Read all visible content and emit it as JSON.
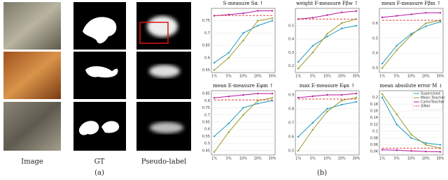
{
  "panel_a": {
    "columns": [
      "Image",
      "GT",
      "Pseudo-label"
    ],
    "label": "(a)"
  },
  "panel_b": {
    "label": "(b)"
  },
  "chart_data": [
    {
      "type": "line",
      "title": "S-measure Sα ↑",
      "categories": [
        "1%",
        "5%",
        "10%",
        "20%",
        "30%"
      ],
      "ylim": [
        0.54,
        0.8
      ],
      "yticks": [
        0.55,
        0.6,
        0.65,
        0.7,
        0.75
      ],
      "series": [
        {
          "color": "#1f9bbf",
          "values": [
            0.58,
            0.62,
            0.7,
            0.73,
            0.75
          ]
        },
        {
          "color": "#9a9a2a",
          "values": [
            0.55,
            0.6,
            0.67,
            0.75,
            0.76
          ]
        },
        {
          "color": "#b5179e",
          "values": [
            0.77,
            0.775,
            0.78,
            0.79,
            0.79
          ]
        },
        {
          "color": "#e0413a",
          "dashed": true,
          "values": [
            0.771,
            0.771,
            0.771,
            0.771,
            0.771
          ]
        }
      ]
    },
    {
      "type": "line",
      "title": "weight F-measure Fβw ↑",
      "categories": [
        "1%",
        "5%",
        "10%",
        "20%",
        "30%"
      ],
      "ylim": [
        0.15,
        0.63
      ],
      "yticks": [
        0.2,
        0.3,
        0.4,
        0.5
      ],
      "series": [
        {
          "color": "#1f9bbf",
          "values": [
            0.23,
            0.35,
            0.42,
            0.48,
            0.5
          ]
        },
        {
          "color": "#9a9a2a",
          "values": [
            0.18,
            0.3,
            0.44,
            0.52,
            0.55
          ]
        },
        {
          "color": "#b5179e",
          "values": [
            0.55,
            0.56,
            0.58,
            0.6,
            0.61
          ]
        },
        {
          "color": "#e0413a",
          "dashed": true,
          "values": [
            0.55,
            0.55,
            0.55,
            0.55,
            0.55
          ]
        }
      ]
    },
    {
      "type": "line",
      "title": "mean F-measure Fβm ↑",
      "categories": [
        "1%",
        "5%",
        "10%",
        "20%",
        "30%"
      ],
      "ylim": [
        0.27,
        0.7
      ],
      "yticks": [
        0.3,
        0.4,
        0.5,
        0.6
      ],
      "series": [
        {
          "color": "#1f9bbf",
          "values": [
            0.33,
            0.45,
            0.53,
            0.58,
            0.61
          ]
        },
        {
          "color": "#9a9a2a",
          "values": [
            0.3,
            0.42,
            0.52,
            0.6,
            0.62
          ]
        },
        {
          "color": "#b5179e",
          "values": [
            0.64,
            0.65,
            0.66,
            0.67,
            0.67
          ]
        },
        {
          "color": "#e0413a",
          "dashed": true,
          "values": [
            0.62,
            0.62,
            0.62,
            0.62,
            0.62
          ]
        }
      ]
    },
    {
      "type": "line",
      "title": "mean E-measure Eφm ↑",
      "categories": [
        "1%",
        "5%",
        "10%",
        "20%",
        "30%"
      ],
      "ylim": [
        0.42,
        0.87
      ],
      "yticks": [
        0.45,
        0.5,
        0.55,
        0.6,
        0.65,
        0.7,
        0.75,
        0.8,
        0.85
      ],
      "series": [
        {
          "color": "#1f9bbf",
          "values": [
            0.55,
            0.64,
            0.75,
            0.78,
            0.8
          ]
        },
        {
          "color": "#9a9a2a",
          "values": [
            0.44,
            0.58,
            0.7,
            0.8,
            0.82
          ]
        },
        {
          "color": "#b5179e",
          "values": [
            0.82,
            0.83,
            0.84,
            0.85,
            0.85
          ]
        },
        {
          "color": "#e0413a",
          "dashed": true,
          "values": [
            0.806,
            0.806,
            0.806,
            0.806,
            0.806
          ]
        }
      ]
    },
    {
      "type": "line",
      "title": "max E-measure Eφx ↑",
      "categories": [
        "1%",
        "5%",
        "10%",
        "20%",
        "30%"
      ],
      "ylim": [
        0.47,
        0.93
      ],
      "yticks": [
        0.5,
        0.6,
        0.7,
        0.8,
        0.9
      ],
      "series": [
        {
          "color": "#1f9bbf",
          "values": [
            0.6,
            0.7,
            0.8,
            0.83,
            0.85
          ]
        },
        {
          "color": "#9a9a2a",
          "values": [
            0.5,
            0.65,
            0.78,
            0.86,
            0.88
          ]
        },
        {
          "color": "#b5179e",
          "values": [
            0.88,
            0.89,
            0.9,
            0.9,
            0.91
          ]
        },
        {
          "color": "#e0413a",
          "dashed": true,
          "values": [
            0.87,
            0.87,
            0.87,
            0.87,
            0.87
          ]
        }
      ]
    },
    {
      "type": "line",
      "title": "mean absolute error M ↓",
      "categories": [
        "1%",
        "5%",
        "10%",
        "20%",
        "30%"
      ],
      "ylim": [
        0.03,
        0.22
      ],
      "yticks": [
        0.04,
        0.06,
        0.08,
        0.1,
        0.12,
        0.14,
        0.16,
        0.18,
        0.2
      ],
      "legend": "upper right",
      "series": [
        {
          "name": "Supervised",
          "color": "#1f9bbf",
          "values": [
            0.2,
            0.12,
            0.08,
            0.065,
            0.06
          ]
        },
        {
          "name": "Mean Teacher",
          "color": "#9a9a2a",
          "values": [
            0.21,
            0.15,
            0.09,
            0.06,
            0.05
          ]
        },
        {
          "name": "CamoTeacher",
          "color": "#b5179e",
          "values": [
            0.045,
            0.044,
            0.042,
            0.04,
            0.039
          ]
        },
        {
          "name": "SINet",
          "color": "#e0413a",
          "dashed": true,
          "values": [
            0.05,
            0.05,
            0.05,
            0.05,
            0.05
          ]
        }
      ]
    }
  ]
}
